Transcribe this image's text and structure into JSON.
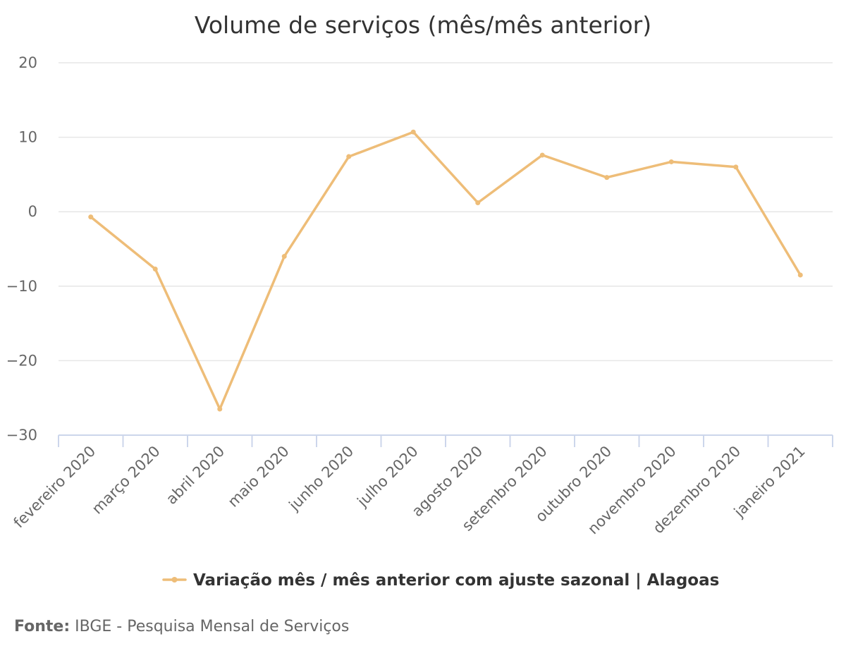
{
  "chart_data": {
    "type": "line",
    "title": "Volume de serviços (mês/mês anterior)",
    "xlabel": "",
    "ylabel": "",
    "categories": [
      "fevereiro 2020",
      "março 2020",
      "abril 2020",
      "maio 2020",
      "junho 2020",
      "julho 2020",
      "agosto 2020",
      "setembro 2020",
      "outubro 2020",
      "novembro 2020",
      "dezembro 2020",
      "janeiro 2021"
    ],
    "series": [
      {
        "name": "Variação mês / mês anterior com ajuste sazonal | Alagoas",
        "color": "#EEBD78",
        "values": [
          -0.7,
          -7.7,
          -26.5,
          -6.0,
          7.4,
          10.7,
          1.2,
          7.6,
          4.6,
          6.7,
          6.0,
          -8.5
        ]
      }
    ],
    "ylim": [
      -30,
      20
    ],
    "yticks": [
      "20",
      "10",
      "0",
      "−10",
      "−20",
      "−30"
    ],
    "ytick_values": [
      20,
      10,
      0,
      -10,
      -20,
      -30
    ],
    "grid": true,
    "legend_position": "bottom-center"
  },
  "footer": {
    "label": "Fonte:",
    "text": "IBGE - Pesquisa Mensal de Serviços"
  }
}
